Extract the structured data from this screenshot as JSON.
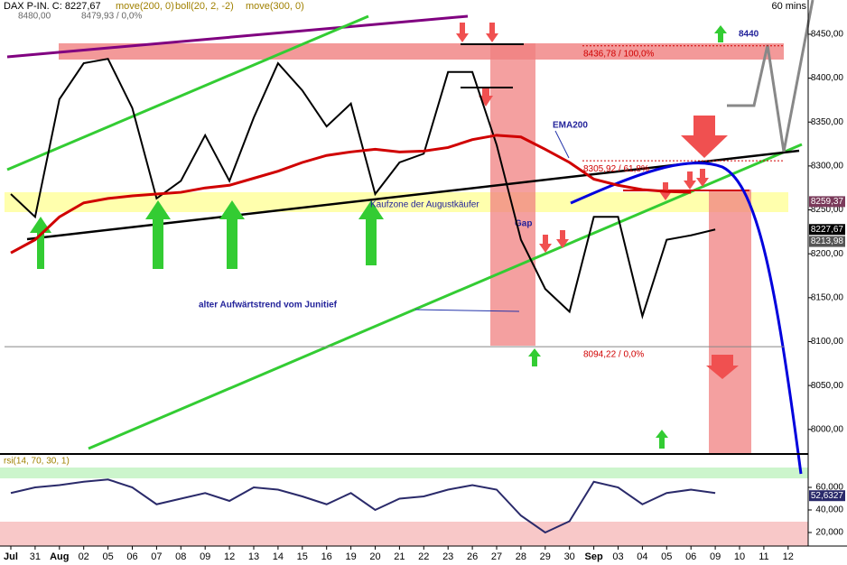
{
  "chart_data": [
    {
      "type": "line",
      "title": "DAX P-IN. C: 8227,67",
      "indicators": [
        "move(200, 0)",
        "boll(20, 2, -2)",
        "move(300, 0)"
      ],
      "timeframe": "60 mins",
      "top_labels": [
        "8480,00",
        "8479,93 / 0,0%"
      ],
      "categories": [
        "Jul",
        "31",
        "Aug",
        "02",
        "05",
        "06",
        "07",
        "08",
        "09",
        "12",
        "13",
        "14",
        "15",
        "16",
        "19",
        "20",
        "21",
        "22",
        "23",
        "26",
        "27",
        "28",
        "29",
        "30",
        "Sep",
        "03",
        "04",
        "05",
        "06",
        "09",
        "10",
        "11",
        "12"
      ],
      "series": [
        {
          "color": "#000000",
          "values": [
            8268,
            8242,
            8376,
            8417,
            8422,
            8366,
            8263,
            8283,
            8335,
            8283,
            8355,
            8417,
            8386,
            8345,
            8371,
            8268,
            8304,
            8314,
            8407,
            8407,
            8324,
            8216,
            8160,
            8134,
            8242,
            8242,
            8129,
            8216,
            8221,
            8227.67,
            null,
            null,
            null
          ]
        },
        {
          "name": "EMA200",
          "color": "#d00000",
          "values": [
            8201,
            8216,
            8242,
            8258,
            8263,
            8266,
            8268,
            8270,
            8275,
            8278,
            8286,
            8294,
            8304,
            8312,
            8316,
            8319,
            8316,
            8317,
            8321,
            8330,
            8335,
            8333,
            8319,
            8304,
            8285,
            8278,
            8273,
            8271,
            8270,
            null,
            null,
            null,
            null
          ]
        }
      ],
      "ylim": [
        7972,
        8489
      ],
      "yticks": [
        {
          "value": 8000,
          "label": "8000,00"
        },
        {
          "value": 8050,
          "label": "8050,00"
        },
        {
          "value": 8100,
          "label": "8100,00"
        },
        {
          "value": 8150,
          "label": "8150,00"
        },
        {
          "value": 8200,
          "label": "8200,00"
        },
        {
          "value": 8250,
          "label": "8250,00"
        },
        {
          "value": 8300,
          "label": "8300,00"
        },
        {
          "value": 8350,
          "label": "8350,00"
        },
        {
          "value": 8400,
          "label": "8400,00"
        },
        {
          "value": 8450,
          "label": "8450,00"
        }
      ],
      "levels": [
        {
          "value": 8436.78,
          "label": "8436,78 / 100,0%"
        },
        {
          "value": 8305.92,
          "label": "8305,92 / 61,8%"
        },
        {
          "value": 8094.22,
          "label": "8094,22 / 0,0%"
        }
      ],
      "price_tags": [
        {
          "value": 8259.37,
          "label": "8259,37",
          "color": "#7a3a5a"
        },
        {
          "value": 8227.67,
          "label": "8227,67",
          "color": "#000000"
        },
        {
          "value": 8213.98,
          "label": "8213,98",
          "color": "#555555"
        }
      ],
      "annotations": [
        "Kaufzone der Augustkäufer",
        "alter Aufwärtstrend vom Junitief",
        "Gap",
        "8440"
      ]
    },
    {
      "type": "line",
      "title": "rsi(14, 70, 30, 1)",
      "series": [
        {
          "color": "#2a2a6a",
          "values": [
            55,
            60,
            62,
            65,
            67,
            60,
            45,
            50,
            55,
            48,
            60,
            58,
            52,
            45,
            55,
            40,
            50,
            52,
            58,
            62,
            58,
            35,
            20,
            30,
            65,
            60,
            45,
            55,
            58,
            55,
            null,
            null,
            null
          ]
        }
      ],
      "ylim": [
        8,
        88
      ],
      "yticks": [
        {
          "value": 20,
          "label": "20,000"
        },
        {
          "value": 40,
          "label": "40,000"
        },
        {
          "value": 60,
          "label": "60,000"
        }
      ],
      "price_tags": [
        {
          "value": 52.6327,
          "label": "52,6327",
          "color": "#2a2a6a"
        }
      ]
    }
  ]
}
